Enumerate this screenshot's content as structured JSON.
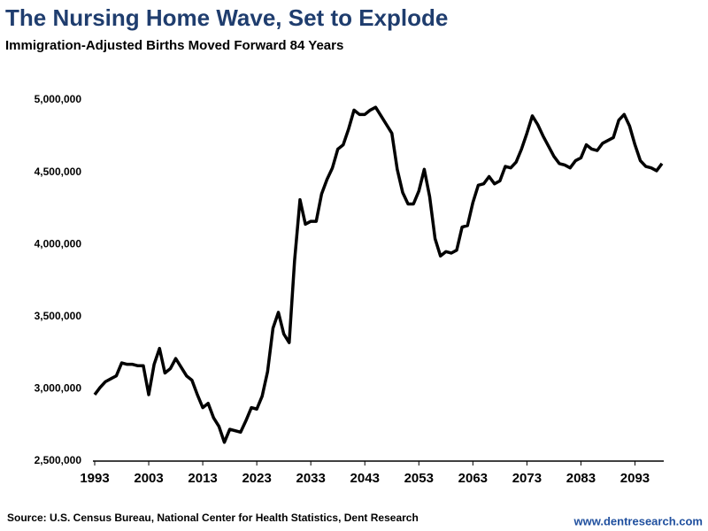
{
  "chart_data": {
    "type": "line",
    "title": "The Nursing Home Wave, Set to Explode",
    "subtitle": "Immigration-Adjusted Births Moved Forward 84 Years",
    "source": "Source: U.S. Census Bureau, National Center for Health Statistics, Dent Research",
    "website": "www.dentresearch.com",
    "color": "#000000",
    "x": [
      1993,
      1994,
      1995,
      1996,
      1997,
      1998,
      1999,
      2000,
      2001,
      2002,
      2003,
      2004,
      2005,
      2006,
      2007,
      2008,
      2009,
      2010,
      2011,
      2012,
      2013,
      2014,
      2015,
      2016,
      2017,
      2018,
      2019,
      2020,
      2021,
      2022,
      2023,
      2024,
      2025,
      2026,
      2027,
      2028,
      2029,
      2030,
      2031,
      2032,
      2033,
      2034,
      2035,
      2036,
      2037,
      2038,
      2039,
      2040,
      2041,
      2042,
      2043,
      2044,
      2045,
      2046,
      2047,
      2048,
      2049,
      2050,
      2051,
      2052,
      2053,
      2054,
      2055,
      2056,
      2057,
      2058,
      2059,
      2060,
      2061,
      2062,
      2063,
      2064,
      2065,
      2066,
      2067,
      2068,
      2069,
      2070,
      2071,
      2072,
      2073,
      2074,
      2075,
      2076,
      2077,
      2078,
      2079,
      2080,
      2081,
      2082,
      2083,
      2084,
      2085,
      2086,
      2087,
      2088,
      2089,
      2090,
      2091,
      2092,
      2093,
      2094,
      2095,
      2096,
      2097,
      2098
    ],
    "values": [
      2960000,
      3010000,
      3050000,
      3070000,
      3090000,
      3180000,
      3170000,
      3170000,
      3160000,
      3160000,
      2960000,
      3170000,
      3280000,
      3110000,
      3140000,
      3210000,
      3150000,
      3090000,
      3060000,
      2960000,
      2870000,
      2900000,
      2800000,
      2740000,
      2630000,
      2720000,
      2710000,
      2700000,
      2780000,
      2870000,
      2860000,
      2950000,
      3120000,
      3420000,
      3530000,
      3380000,
      3320000,
      3890000,
      4310000,
      4140000,
      4160000,
      4160000,
      4350000,
      4450000,
      4530000,
      4660000,
      4690000,
      4800000,
      4930000,
      4900000,
      4900000,
      4930000,
      4950000,
      4890000,
      4830000,
      4770000,
      4520000,
      4360000,
      4280000,
      4280000,
      4370000,
      4520000,
      4330000,
      4040000,
      3920000,
      3950000,
      3940000,
      3960000,
      4120000,
      4130000,
      4290000,
      4410000,
      4420000,
      4470000,
      4420000,
      4440000,
      4540000,
      4530000,
      4570000,
      4660000,
      4770000,
      4890000,
      4830000,
      4750000,
      4680000,
      4610000,
      4560000,
      4550000,
      4530000,
      4580000,
      4600000,
      4690000,
      4660000,
      4650000,
      4700000,
      4720000,
      4740000,
      4860000,
      4900000,
      4820000,
      4690000,
      4580000,
      4540000,
      4530000,
      4510000,
      4560000
    ],
    "xlim": [
      1993,
      2098
    ],
    "xticks": [
      1993,
      2003,
      2013,
      2023,
      2033,
      2043,
      2053,
      2063,
      2073,
      2083,
      2093
    ],
    "ylim": [
      2500000,
      5000000
    ],
    "yticks": [
      {
        "value": 2500000,
        "label": "2,500,000"
      },
      {
        "value": 3000000,
        "label": "3,000,000"
      },
      {
        "value": 3500000,
        "label": "3,500,000"
      },
      {
        "value": 4000000,
        "label": "4,000,000"
      },
      {
        "value": 4500000,
        "label": "4,500,000"
      },
      {
        "value": 5000000,
        "label": "5,000,000"
      }
    ],
    "grid": false
  }
}
